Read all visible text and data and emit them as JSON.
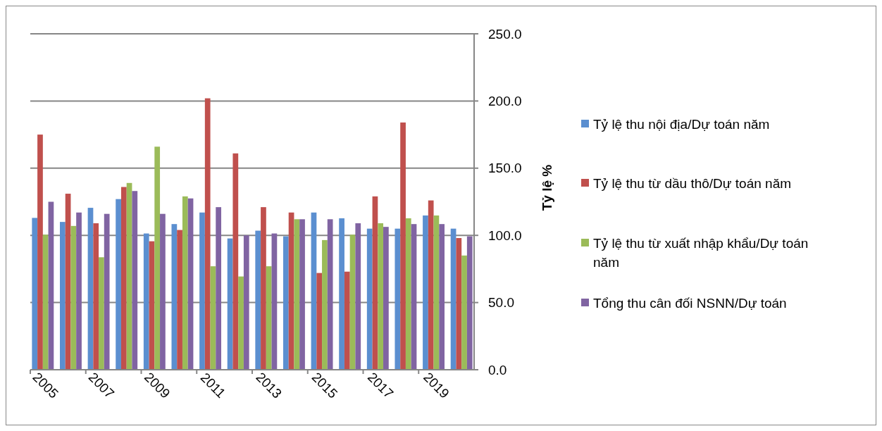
{
  "chart_data": {
    "type": "bar",
    "ylabel": "Tỷ lệ %",
    "categories": [
      "2005",
      null,
      "2007",
      null,
      "2009",
      null,
      "2011",
      null,
      "2013",
      null,
      "2015",
      null,
      "2017",
      null,
      "2019",
      null
    ],
    "series": [
      {
        "name": "Tỷ lệ thu nội địa/Dự toán năm",
        "color": "#5b8fd0",
        "values": [
          113,
          110,
          120.5,
          127,
          101.4,
          108.4,
          117,
          97.7,
          103.5,
          99.3,
          117,
          112.7,
          105,
          105,
          114.8,
          105
        ]
      },
      {
        "name": "Tỷ lệ thu từ dầu thô/Dự toán năm",
        "color": "#c0504d",
        "values": [
          175,
          131,
          109,
          136,
          95.6,
          104,
          202,
          161,
          121,
          117,
          72,
          73,
          129,
          184,
          126,
          98
        ]
      },
      {
        "name": "Tỷ lệ thu từ xuất nhập khẩu/Dự toán năm",
        "color": "#9bbb59",
        "values": [
          100.5,
          107,
          83.7,
          139,
          166,
          129,
          77,
          69.4,
          77,
          112,
          96.5,
          100.5,
          109,
          112.7,
          114.8,
          85
        ]
      },
      {
        "name": "Tổng thu cân đối NSNN/Dự toán",
        "color": "#8064a2",
        "values": [
          125,
          117,
          116,
          133,
          116,
          127.5,
          121,
          100,
          101.4,
          112,
          112,
          109,
          106.3,
          108.4,
          108.4,
          99.3
        ]
      }
    ],
    "ylim": [
      0,
      250
    ],
    "yticks": [
      {
        "value": 0,
        "label": "0.0"
      },
      {
        "value": 50,
        "label": "50.0"
      },
      {
        "value": 100,
        "label": "100.0"
      },
      {
        "value": 150,
        "label": "150.0"
      },
      {
        "value": 200,
        "label": "200.0"
      },
      {
        "value": 250,
        "label": "250.0"
      }
    ],
    "grid": "y",
    "legend": "right"
  }
}
